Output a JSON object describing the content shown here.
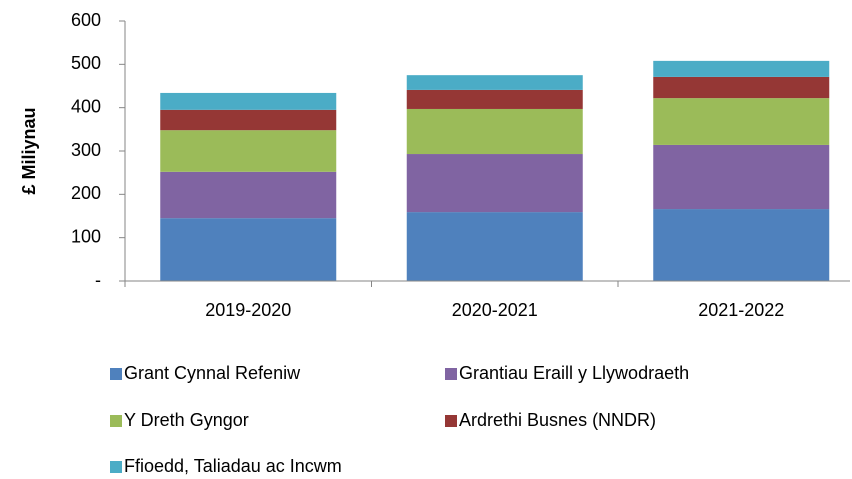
{
  "chart_data": {
    "type": "stacked_bar",
    "y_label": "£ Miliynau",
    "categories": [
      "2019-2020",
      "2020-2021",
      "2021-2022"
    ],
    "series": [
      {
        "name": "Grant Cynnal Refeniw",
        "color": "#4f81bd",
        "values": [
          145,
          159,
          166
        ]
      },
      {
        "name": "Grantiau Eraill y Llywodraeth",
        "color": "#8064a2",
        "values": [
          107,
          134,
          148
        ]
      },
      {
        "name": "Y Dreth Gyngor",
        "color": "#9bbb59",
        "values": [
          96,
          104,
          108
        ]
      },
      {
        "name": "Ardrethi Busnes (NNDR)",
        "color": "#953735",
        "values": [
          47,
          44,
          49
        ]
      },
      {
        "name": "Ffioedd, Taliadau ac Incwm",
        "color": "#4bacc6",
        "values": [
          39,
          34,
          37
        ]
      }
    ],
    "ylim": [
      0,
      600
    ],
    "yticks": [
      {
        "value": 0,
        "label": "-"
      },
      100,
      200,
      300,
      400,
      500,
      600
    ]
  }
}
